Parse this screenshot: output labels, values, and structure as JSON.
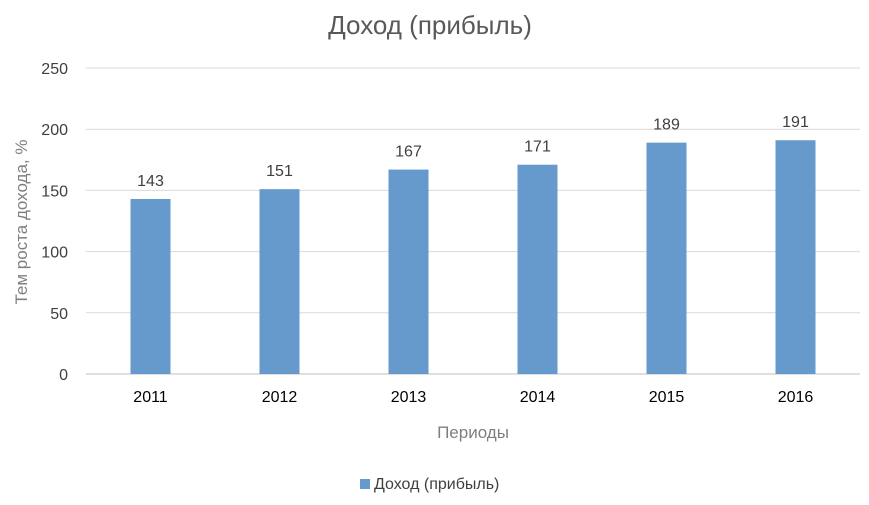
{
  "chart_data": {
    "type": "bar",
    "title": "Доход (прибыль)",
    "xlabel": "Периоды",
    "ylabel": "Тем роста дохода, %",
    "categories": [
      "2011",
      "2012",
      "2013",
      "2014",
      "2015",
      "2016"
    ],
    "series": [
      {
        "name": "Доход (прибыль)",
        "values": [
          143,
          151,
          167,
          171,
          189,
          191
        ],
        "color": "#6699cc"
      }
    ],
    "ylim": [
      0,
      250
    ],
    "yticks": [
      0,
      50,
      100,
      150,
      200,
      250
    ],
    "grid": true,
    "legend": "bottom",
    "data_labels": true
  }
}
